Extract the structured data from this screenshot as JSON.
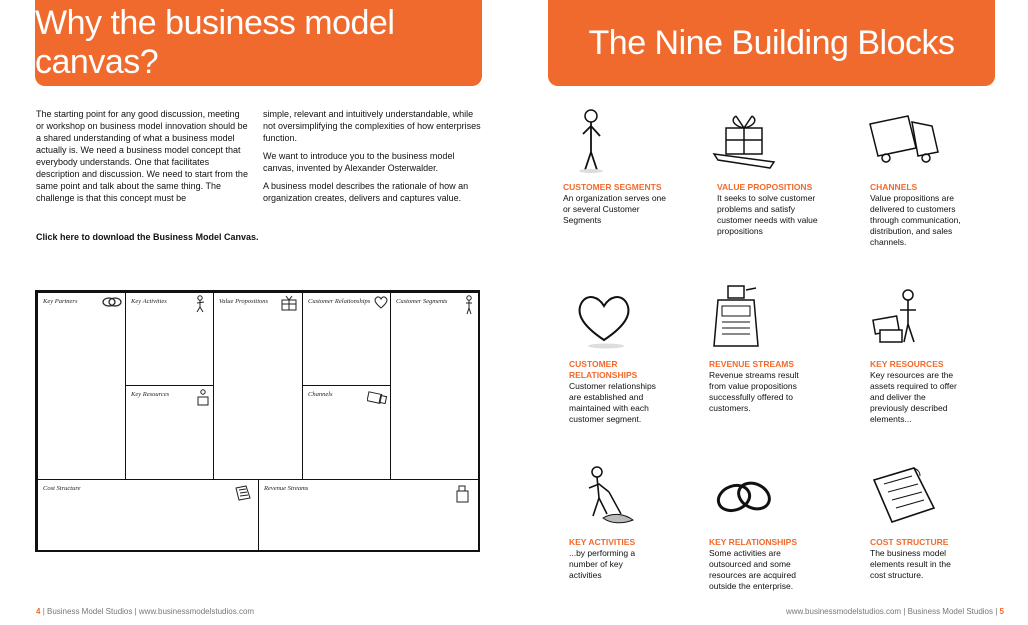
{
  "left_page": {
    "banner_title": "Why the business model canvas?",
    "intro_col1": [
      "The starting point for any good discussion, meeting or workshop on business model innovation should be a shared understanding of what a business model actually is. We need a business model concept that everybody understands. One that facilitates description and discussion. We need to start from the same point and talk about the same thing. The challenge is that this concept must be"
    ],
    "intro_col2": [
      "simple, relevant and intuitively understandable, while not oversimplifying the complexities of how enterprises function.",
      "We want to introduce you to the business model canvas, invented by Alexander Osterwalder.",
      "A business model describes the rationale of how an organization creates, delivers and captures value."
    ],
    "download_link": "Click here to download the Business Model Canvas.",
    "canvas": {
      "key_partners": "Key Partners",
      "key_activities": "Key Activities",
      "value_propositions": "Value Propositions",
      "customer_relationships": "Customer Relationships",
      "customer_segments": "Customer Segments",
      "key_resources": "Key Resources",
      "channels": "Channels",
      "cost_structure": "Cost Structure",
      "revenue_streams": "Revenue Streams"
    },
    "footer": {
      "page_number": "4",
      "text": "| Business Model Studios | www.businessmodelstudios.com"
    }
  },
  "right_page": {
    "banner_title": "The Nine Building Blocks",
    "blocks": [
      {
        "title": "CUSTOMER SEGMENTS",
        "desc": "An organization serves one or several Customer Segments",
        "icon": "person-icon"
      },
      {
        "title": "VALUE PROPOSITIONS",
        "desc": "It seeks to solve customer problems and satisfy customer needs with value propositions",
        "icon": "gift-icon"
      },
      {
        "title": "CHANNELS",
        "desc": "Value propositions are delivered to customers through communication, distribution, and sales channels.",
        "icon": "truck-icon"
      },
      {
        "title": "CUSTOMER RELATIONSHIPS",
        "desc": "Customer relationships are established and maintained with each customer segment.",
        "icon": "heart-icon"
      },
      {
        "title": "REVENUE STREAMS",
        "desc": "Revenue streams result from value propositions successfully offered to customers.",
        "icon": "cash-register-icon"
      },
      {
        "title": "KEY RESOURCES",
        "desc": "Key resources are the assets required to offer and deliver the previously described elements...",
        "icon": "worker-boxes-icon"
      },
      {
        "title": "KEY ACTIVITIES",
        "desc": "...by performing a number of key activities",
        "icon": "worker-digging-icon"
      },
      {
        "title": "KEY RELATIONSHIPS",
        "desc": "Some activities are outsourced and some resources are acquired outside the enterprise.",
        "icon": "chain-links-icon"
      },
      {
        "title": "COST STRUCTURE",
        "desc": "The business model elements  result in the cost structure.",
        "icon": "document-icon"
      }
    ],
    "footer": {
      "text": "www.businessmodelstudios.com | Business Model Studios |",
      "page_number": "5"
    }
  },
  "accent_color": "#f16a2d"
}
